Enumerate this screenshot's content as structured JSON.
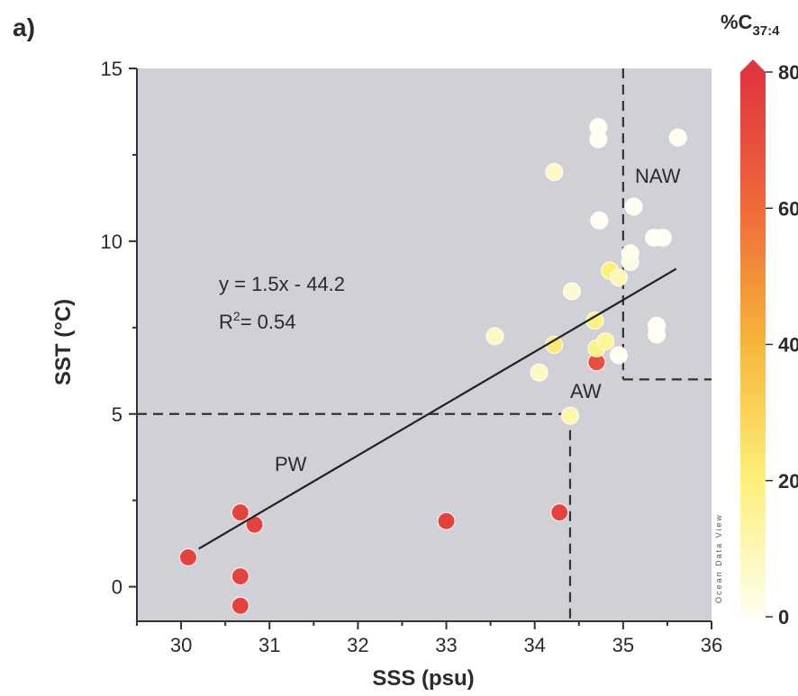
{
  "panel_label": "a)",
  "colorbar": {
    "title_main": "%C",
    "title_sub": "37:4",
    "ticks": [
      0,
      20,
      40,
      60,
      80
    ],
    "colors": [
      "#fffef0",
      "#fdf07a",
      "#f7b63a",
      "#ef6a3a",
      "#e0343f"
    ]
  },
  "watermark": "Ocean Data View",
  "chart_data": {
    "type": "scatter",
    "title": "",
    "xlabel": "SSS (psu)",
    "ylabel": "SST (°C)",
    "xlim": [
      29.5,
      36
    ],
    "ylim": [
      -1,
      15
    ],
    "xticks": [
      30,
      31,
      32,
      33,
      34,
      35,
      36
    ],
    "yticks": [
      0,
      5,
      10,
      15
    ],
    "grid": false,
    "background": "#cfd1d6",
    "regression": {
      "equation": "y = 1.5x - 44.2",
      "r2_prefix": "R",
      "r2_sup": "2",
      "r2_value": "= 0.54",
      "x_range": [
        30.2,
        35.6
      ]
    },
    "water_masses": [
      "PW",
      "AW",
      "NAW"
    ],
    "boundaries": {
      "pw_sst": 5,
      "pw_sss": 34.4,
      "naw_sss": 35,
      "naw_sst": 6
    },
    "points": [
      {
        "x": 30.08,
        "y": 0.85,
        "c": 75
      },
      {
        "x": 30.67,
        "y": 2.15,
        "c": 75
      },
      {
        "x": 30.83,
        "y": 1.8,
        "c": 75
      },
      {
        "x": 30.67,
        "y": 0.3,
        "c": 75
      },
      {
        "x": 30.67,
        "y": -0.55,
        "c": 75
      },
      {
        "x": 33.0,
        "y": 1.9,
        "c": 75
      },
      {
        "x": 34.28,
        "y": 2.15,
        "c": 75
      },
      {
        "x": 34.7,
        "y": 6.5,
        "c": 70
      },
      {
        "x": 34.4,
        "y": 4.95,
        "c": 12
      },
      {
        "x": 34.05,
        "y": 6.2,
        "c": 8
      },
      {
        "x": 33.55,
        "y": 7.25,
        "c": 8
      },
      {
        "x": 34.22,
        "y": 7.0,
        "c": 22
      },
      {
        "x": 34.7,
        "y": 6.9,
        "c": 18
      },
      {
        "x": 34.8,
        "y": 7.1,
        "c": 15
      },
      {
        "x": 34.68,
        "y": 7.7,
        "c": 18
      },
      {
        "x": 34.42,
        "y": 8.55,
        "c": 6
      },
      {
        "x": 34.85,
        "y": 9.15,
        "c": 20
      },
      {
        "x": 34.95,
        "y": 8.95,
        "c": 10
      },
      {
        "x": 35.08,
        "y": 9.4,
        "c": 3
      },
      {
        "x": 35.08,
        "y": 9.65,
        "c": 1
      },
      {
        "x": 34.22,
        "y": 12.0,
        "c": 8
      },
      {
        "x": 34.73,
        "y": 10.6,
        "c": 0
      },
      {
        "x": 34.72,
        "y": 12.95,
        "c": 0
      },
      {
        "x": 34.72,
        "y": 13.3,
        "c": 0
      },
      {
        "x": 35.12,
        "y": 11.0,
        "c": 0
      },
      {
        "x": 35.35,
        "y": 10.1,
        "c": 0
      },
      {
        "x": 35.45,
        "y": 10.1,
        "c": 0
      },
      {
        "x": 35.38,
        "y": 7.55,
        "c": 0
      },
      {
        "x": 35.38,
        "y": 7.3,
        "c": 0
      },
      {
        "x": 34.95,
        "y": 6.7,
        "c": 0
      },
      {
        "x": 35.62,
        "y": 13.0,
        "c": 0
      }
    ]
  }
}
